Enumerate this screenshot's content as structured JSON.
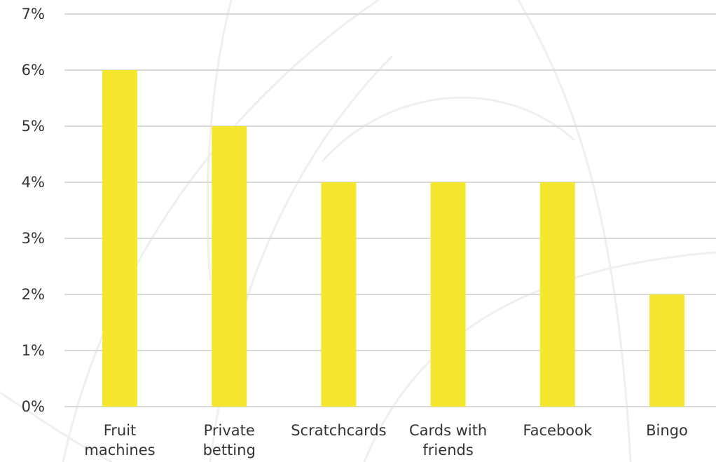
{
  "colors": {
    "bar": "#f5e62e",
    "grid": "#d9d9d9",
    "background_arc": "#efefef",
    "text": "#333333"
  },
  "chart_data": {
    "type": "bar",
    "categories": [
      [
        "Fruit",
        "machines"
      ],
      [
        "Private",
        "betting"
      ],
      [
        "Scratchcards"
      ],
      [
        "Cards with",
        "friends"
      ],
      [
        "Facebook"
      ],
      [
        "Bingo"
      ]
    ],
    "values": [
      6,
      5,
      4,
      4,
      4,
      2
    ],
    "unit": "%",
    "ylim": [
      0,
      7
    ],
    "yticks": [
      "0%",
      "1%",
      "2%",
      "3%",
      "4%",
      "5%",
      "6%",
      "7%"
    ],
    "grid": true,
    "legend": "none"
  }
}
